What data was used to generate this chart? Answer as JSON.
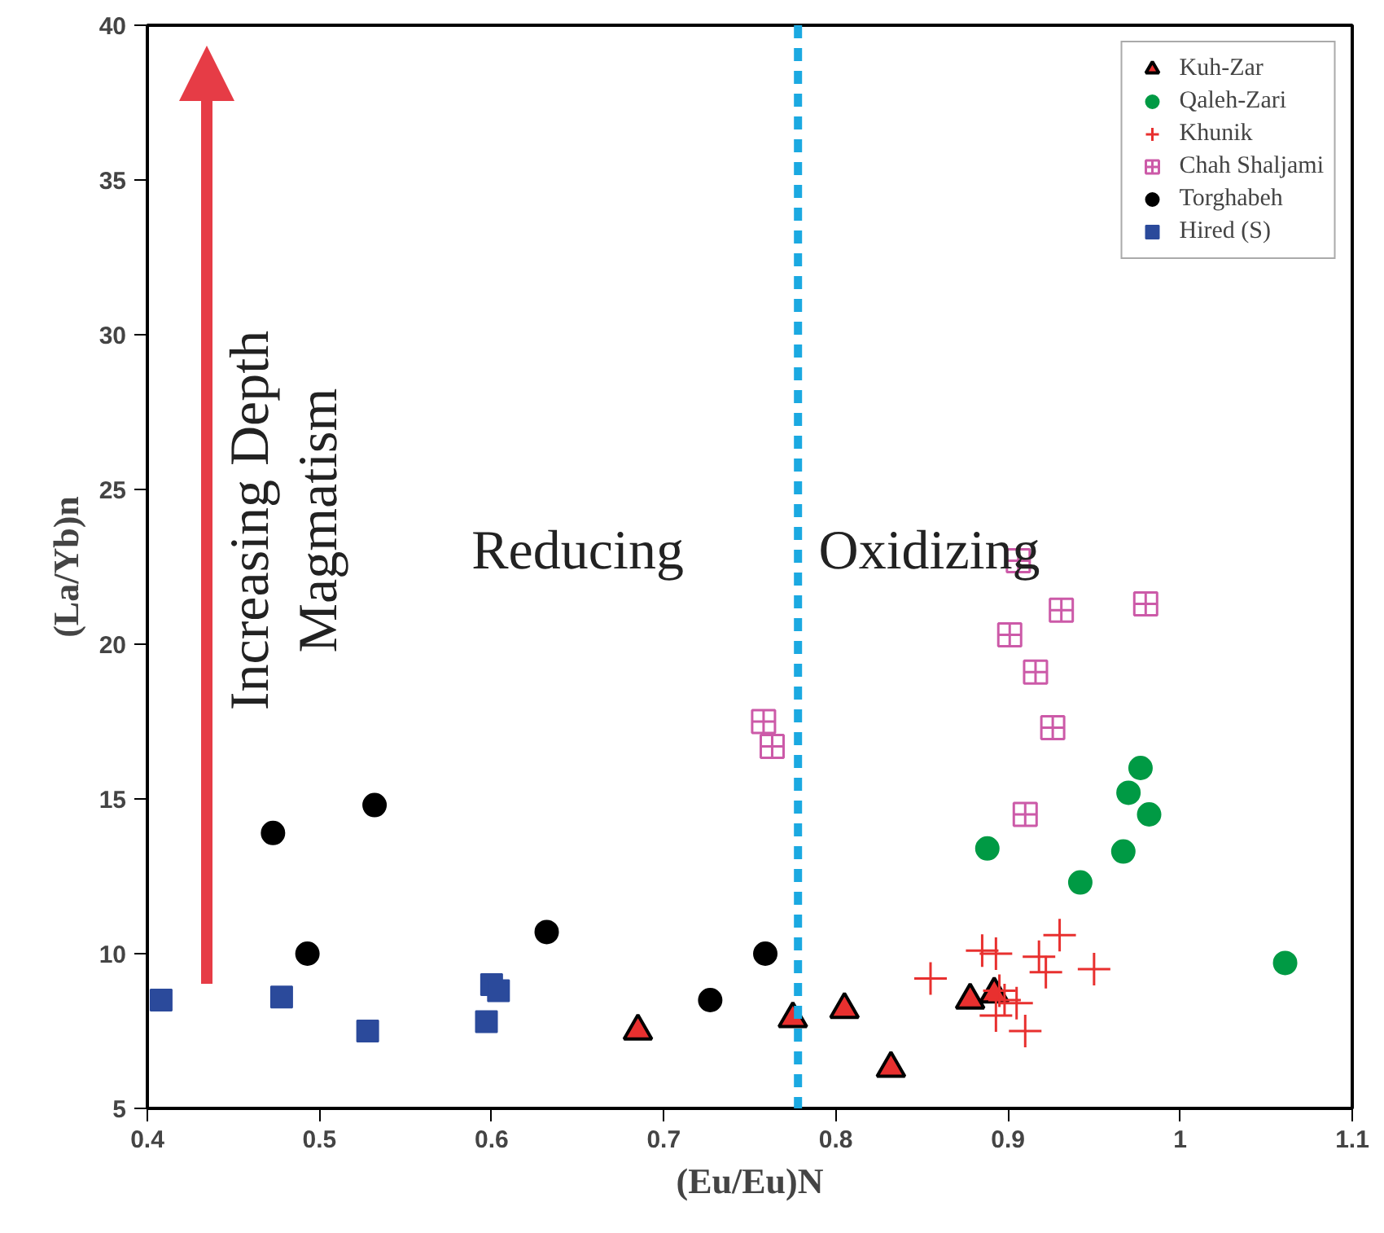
{
  "chart_data": {
    "type": "scatter",
    "xlabel": "(Eu/Eu)N",
    "ylabel": "(La/Yb)n",
    "xlim": [
      0.4,
      1.1
    ],
    "ylim": [
      5,
      40
    ],
    "xticks": [
      0.4,
      0.5,
      0.6,
      0.7,
      0.8,
      0.9,
      1,
      1.1
    ],
    "yticks": [
      5,
      10,
      15,
      20,
      25,
      30,
      35,
      40
    ],
    "grid": false,
    "legend": "top right",
    "ref_lines": [
      {
        "axis": "x",
        "value": 0.778,
        "color": "#1ba9e1",
        "line_style": "dashed"
      }
    ],
    "annotations": [
      "Increasing Depth",
      "Magmatism",
      "Reducing",
      "Oxidizing"
    ],
    "series": [
      {
        "name": "Kuh-Zar",
        "color": "#e8302f",
        "marker": "triangle",
        "x": [
          0.685,
          0.775,
          0.805,
          0.832,
          0.878,
          0.892
        ],
        "values": [
          7.5,
          7.9,
          8.2,
          6.3,
          8.5,
          8.7
        ]
      },
      {
        "name": "Qaleh-Zari",
        "color": "#009a44",
        "marker": "circle",
        "x": [
          0.888,
          0.942,
          0.967,
          0.97,
          0.977,
          0.982,
          1.061
        ],
        "values": [
          13.4,
          12.3,
          13.3,
          15.2,
          16.0,
          14.5,
          9.7
        ]
      },
      {
        "name": "Khunik",
        "color": "#e8302f",
        "marker": "cross",
        "x": [
          0.855,
          0.885,
          0.893,
          0.895,
          0.898,
          0.905,
          0.893,
          0.91,
          0.918,
          0.922,
          0.93,
          0.95
        ],
        "values": [
          9.2,
          10.1,
          10.0,
          8.8,
          8.5,
          8.4,
          8.0,
          7.5,
          9.9,
          9.4,
          10.6,
          9.5
        ]
      },
      {
        "name": "Chah Shaljami",
        "color": "#cc5aa8",
        "x": [
          0.758,
          0.763,
          0.906,
          0.901,
          0.916,
          0.931,
          0.926,
          0.91,
          0.98
        ],
        "values": [
          17.5,
          16.7,
          22.7,
          20.3,
          19.1,
          21.1,
          17.3,
          14.5,
          21.3
        ]
      },
      {
        "name": "Torghabeh",
        "color": "#000000",
        "marker": "circle",
        "x": [
          0.473,
          0.532,
          0.493,
          0.632,
          0.727,
          0.759
        ],
        "values": [
          13.9,
          14.8,
          10.0,
          10.7,
          8.5,
          10.0
        ]
      },
      {
        "name": "Hired (S)",
        "color": "#2b4a9b",
        "marker": "square",
        "x": [
          0.408,
          0.478,
          0.528,
          0.597,
          0.6,
          0.604
        ],
        "values": [
          8.5,
          8.6,
          7.5,
          7.8,
          9.0,
          8.8
        ]
      }
    ]
  }
}
